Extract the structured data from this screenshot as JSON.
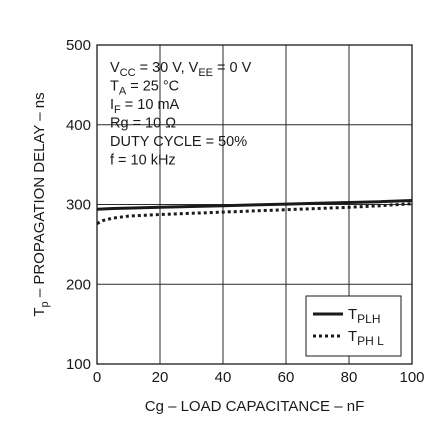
{
  "chart_data": {
    "type": "line",
    "xlabel": "Cg – LOAD CAPACITANCE – nF",
    "ylabel": "T",
    "ylabel_sub": "p",
    "ylabel_rest": " – PROPAGATION DELAY – ns",
    "xlim": [
      0,
      100
    ],
    "ylim": [
      100,
      500
    ],
    "x_ticks": [
      0,
      20,
      40,
      60,
      80,
      100
    ],
    "y_ticks": [
      100,
      200,
      300,
      400,
      500
    ],
    "x_tick_labels": [
      "0",
      "20",
      "40",
      "60",
      "80",
      "100"
    ],
    "y_tick_labels": [
      "100",
      "200",
      "300",
      "400",
      "500"
    ],
    "grid": true,
    "legend_position": "bottom-right",
    "conditions": [
      {
        "id": "vcc",
        "parts": [
          [
            "V",
            ""
          ],
          [
            "CC",
            "sub"
          ],
          [
            " = 30 V,  V",
            ""
          ],
          [
            "EE",
            "sub"
          ],
          [
            " = 0  V",
            ""
          ]
        ]
      },
      {
        "id": "ta",
        "parts": [
          [
            "T",
            ""
          ],
          [
            "A",
            "sub"
          ],
          [
            " = 25 °C",
            ""
          ]
        ]
      },
      {
        "id": "if",
        "parts": [
          [
            "I",
            ""
          ],
          [
            "F",
            "sub"
          ],
          [
            " = 10 mA",
            ""
          ]
        ]
      },
      {
        "id": "rg",
        "parts": [
          [
            "Rg = 10   Ω",
            ""
          ]
        ]
      },
      {
        "id": "duty",
        "parts": [
          [
            "DUTY CYCLE = 50%",
            ""
          ]
        ]
      },
      {
        "id": "freq",
        "parts": [
          [
            "f = 10 kHz",
            ""
          ]
        ]
      }
    ],
    "series": [
      {
        "name": "T",
        "name_sub": "PLH",
        "style": "solid",
        "color": "#1a1a1a",
        "x": [
          0,
          5,
          10,
          20,
          30,
          40,
          50,
          60,
          70,
          80,
          90,
          100
        ],
        "y": [
          294,
          295,
          295.5,
          296.5,
          297.5,
          298.5,
          299.5,
          300.5,
          301.5,
          302.5,
          303.5,
          305
        ]
      },
      {
        "name": "T",
        "name_sub": "PH L",
        "style": "dotted",
        "color": "#1a1a1a",
        "x": [
          0,
          2,
          5,
          10,
          20,
          30,
          40,
          50,
          60,
          70,
          80,
          90,
          100
        ],
        "y": [
          276,
          280,
          283,
          285.5,
          287.5,
          289,
          290.5,
          292,
          293.5,
          295,
          296.5,
          298.5,
          301
        ]
      }
    ]
  }
}
